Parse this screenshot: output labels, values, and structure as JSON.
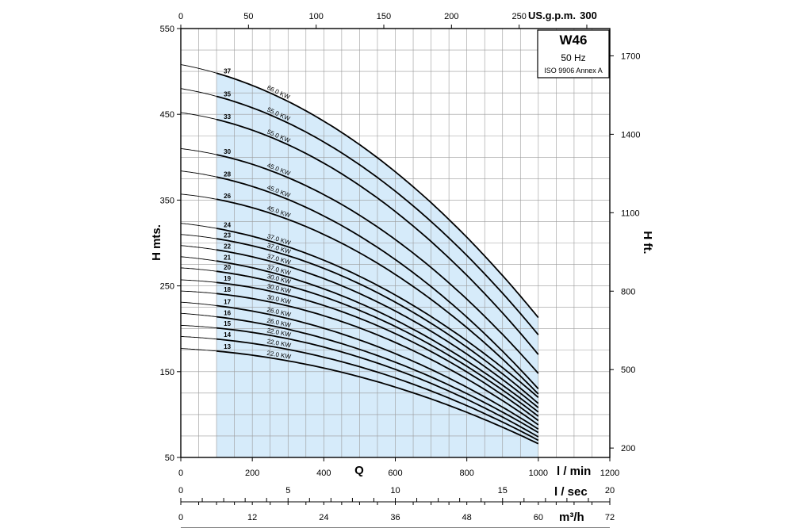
{
  "chart_data": {
    "type": "line",
    "model": "W46",
    "frequency": "50 Hz",
    "standard": "ISO 9906 Annex A",
    "ylabel_left": "H mts.",
    "ylabel_right": "H ft.",
    "x_symbol": "Q",
    "xlim": [
      0,
      1200
    ],
    "ylim": [
      50,
      550
    ],
    "operating_range": [
      100,
      1000
    ],
    "grid": true,
    "x_unit_main": "l / min",
    "x_ticks_main": [
      "0",
      "200",
      "400",
      "600",
      "800",
      "1000",
      "1200"
    ],
    "x_top_unit": "US.g.p.m.",
    "x_top_ticks": [
      "0",
      "50",
      "100",
      "150",
      "200",
      "250",
      "300"
    ],
    "x_lsec_unit": "l / sec",
    "x_lsec_ticks": [
      "0",
      "5",
      "10",
      "15",
      "20"
    ],
    "x_m3h_unit": "m³/h",
    "x_m3h_ticks": [
      "0",
      "12",
      "24",
      "36",
      "48",
      "60",
      "72"
    ],
    "y_ticks_left": [
      "550",
      "450",
      "350",
      "250",
      "150",
      "50"
    ],
    "y_ticks_right": [
      "1700",
      "1400",
      "1100",
      "800",
      "500",
      "200"
    ],
    "series": [
      {
        "stages": "37",
        "power": "66.0 KW",
        "h0": 508,
        "h_at_100": 498,
        "h_at_1000": 213
      },
      {
        "stages": "35",
        "power": "55.0 KW",
        "h0": 480,
        "h_at_100": 471,
        "h_at_1000": 193
      },
      {
        "stages": "33",
        "power": "55.0 KW",
        "h0": 452,
        "h_at_100": 444,
        "h_at_1000": 170
      },
      {
        "stages": "30",
        "power": "45.0 KW",
        "h0": 410,
        "h_at_100": 403,
        "h_at_1000": 148
      },
      {
        "stages": "28",
        "power": "45.0 KW",
        "h0": 384,
        "h_at_100": 377,
        "h_at_1000": 130
      },
      {
        "stages": "26",
        "power": "45.0 KW",
        "h0": 357,
        "h_at_100": 351,
        "h_at_1000": 124
      },
      {
        "stages": "24",
        "power": "37.0 KW",
        "h0": 323,
        "h_at_100": 317,
        "h_at_1000": 120
      },
      {
        "stages": "23",
        "power": "37.0 KW",
        "h0": 310,
        "h_at_100": 305,
        "h_at_1000": 113
      },
      {
        "stages": "22",
        "power": "37.0 KW",
        "h0": 297,
        "h_at_100": 292,
        "h_at_1000": 108
      },
      {
        "stages": "21",
        "power": "37.0 KW",
        "h0": 284,
        "h_at_100": 279,
        "h_at_1000": 103
      },
      {
        "stages": "20",
        "power": "30.0 KW",
        "h0": 271,
        "h_at_100": 267,
        "h_at_1000": 98
      },
      {
        "stages": "19",
        "power": "30.0 KW",
        "h0": 257,
        "h_at_100": 254,
        "h_at_1000": 93
      },
      {
        "stages": "18",
        "power": "30.0 KW",
        "h0": 244,
        "h_at_100": 241,
        "h_at_1000": 88
      },
      {
        "stages": "17",
        "power": "26.0 KW",
        "h0": 231,
        "h_at_100": 227,
        "h_at_1000": 83
      },
      {
        "stages": "16",
        "power": "26.0 KW",
        "h0": 218,
        "h_at_100": 214,
        "h_at_1000": 79
      },
      {
        "stages": "15",
        "power": "22.0 KW",
        "h0": 204,
        "h_at_100": 201,
        "h_at_1000": 74
      },
      {
        "stages": "14",
        "power": "22.0 KW",
        "h0": 191,
        "h_at_100": 188,
        "h_at_1000": 70
      },
      {
        "stages": "13",
        "power": "22.0 KW",
        "h0": 177,
        "h_at_100": 174,
        "h_at_1000": 66
      }
    ]
  },
  "colors": {
    "operating_fill": "#d6ebfa",
    "grid": "#9a9a9a",
    "curve": "#000000"
  }
}
